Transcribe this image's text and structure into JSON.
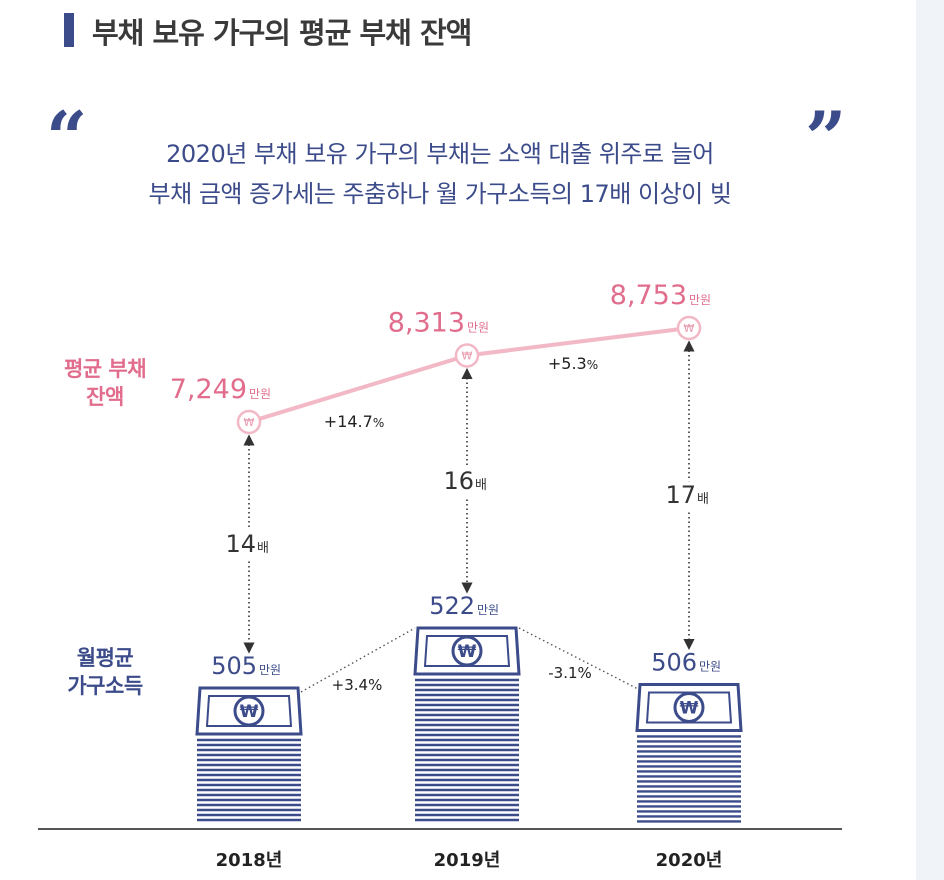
{
  "title": "부채 보유 가구의 평균 부채 잔액",
  "headline": {
    "line1": "2020년 부채 보유 가구의 부채는 소액 대출 위주로 늘어",
    "line2": "부채 금액 증가세는 주춤하나 월 가구소득의 17배 이상이 빚"
  },
  "quote_marks": {
    "open": "“",
    "close": "”"
  },
  "colors": {
    "debt": "#e16c8c",
    "debt_line": "#f2b8c6",
    "income": "#3c4b8a",
    "text": "#3a3a3a"
  },
  "chart_data": {
    "type": "line",
    "categories": [
      "2018년",
      "2019년",
      "2020년"
    ],
    "series": [
      {
        "name": "평균 부채 잔액",
        "values": [
          7249,
          8313,
          8753
        ],
        "value_labels": [
          "7,249",
          "8,313",
          "8,753"
        ],
        "unit": "만원",
        "changes": [
          "+14.7",
          "+5.3"
        ],
        "change_unit": "%"
      },
      {
        "name": "월평균 가구소득",
        "values": [
          505,
          522,
          506
        ],
        "value_labels": [
          "505",
          "522",
          "506"
        ],
        "unit": "만원",
        "changes": [
          "+3.4%",
          "-3.1%"
        ]
      }
    ],
    "ratios": [
      {
        "value": "14",
        "unit": "배"
      },
      {
        "value": "16",
        "unit": "배"
      },
      {
        "value": "17",
        "unit": "배"
      }
    ],
    "icon": "won-banknote-stack-icon",
    "marker_icon": "won-coin-icon",
    "marker_symbol": "₩"
  },
  "labels": {
    "debt": [
      "평균 부채",
      "잔액"
    ],
    "income": [
      "월평균",
      "가구소득"
    ]
  }
}
